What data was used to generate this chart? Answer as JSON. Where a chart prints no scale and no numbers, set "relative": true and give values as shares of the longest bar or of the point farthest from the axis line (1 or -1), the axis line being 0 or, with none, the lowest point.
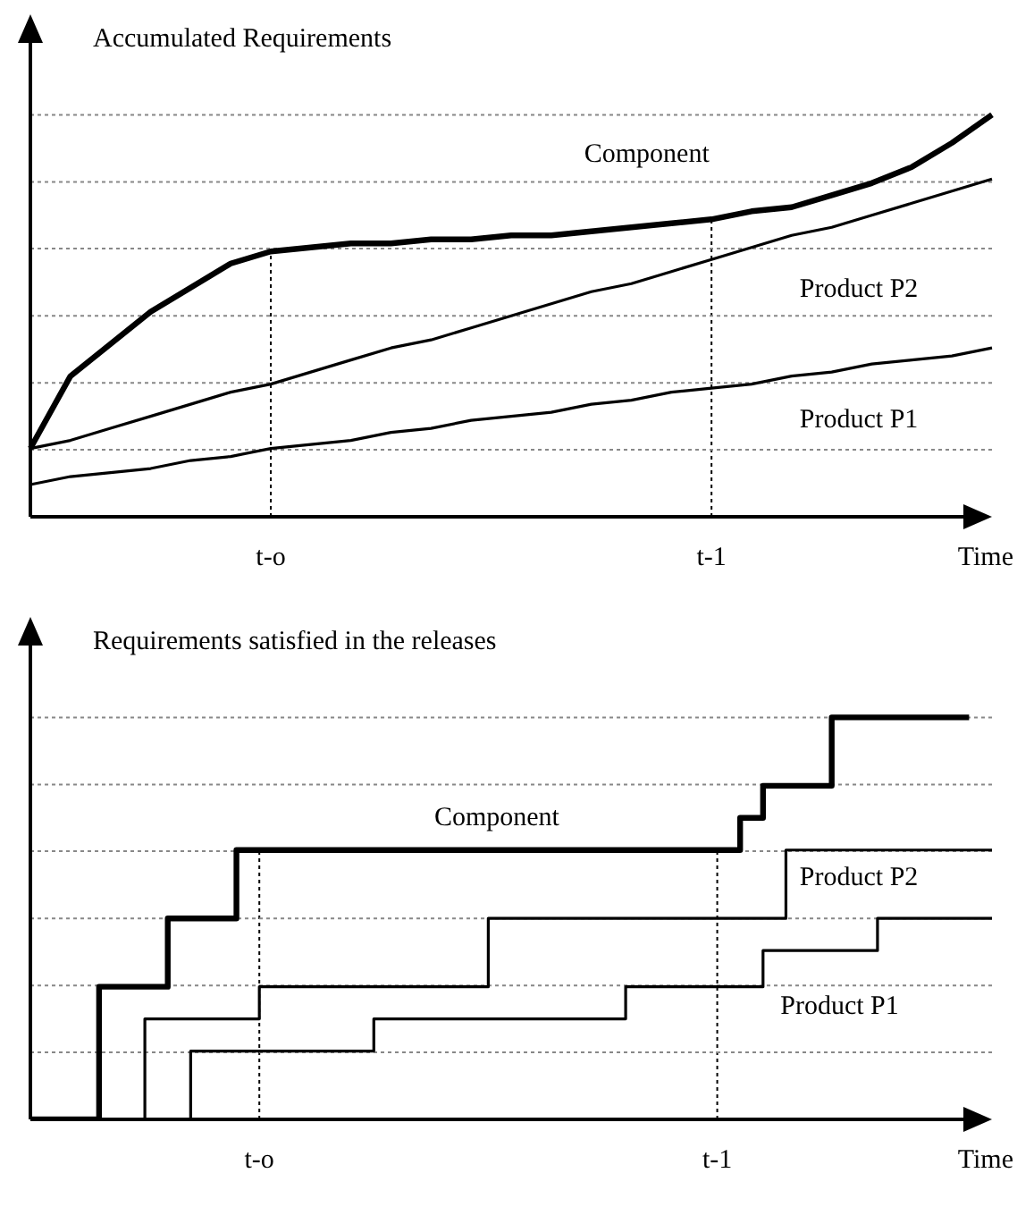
{
  "chart_data": [
    {
      "type": "line",
      "title": "Accumulated Requirements",
      "xlabel": "Time",
      "relative": true,
      "tick_labels": "x",
      "categories": [
        null,
        null,
        null,
        null,
        null,
        null,
        "t-o",
        null,
        null,
        null,
        null,
        null,
        null,
        null,
        null,
        null,
        null,
        "t-1",
        null,
        null,
        null,
        null,
        null,
        null,
        null
      ],
      "series": [
        {
          "name": "Component",
          "color": "#000000",
          "values": [
            0.17,
            0.35,
            0.43,
            0.51,
            0.57,
            0.63,
            0.66,
            0.67,
            0.68,
            0.68,
            0.69,
            0.69,
            0.7,
            0.7,
            0.71,
            0.72,
            0.73,
            0.74,
            0.76,
            0.77,
            0.8,
            0.83,
            0.87,
            0.93,
            1
          ]
        },
        {
          "name": "Product P2",
          "color": "#000000",
          "values": [
            0.17,
            0.19,
            0.22,
            0.25,
            0.28,
            0.31,
            0.33,
            0.36,
            0.39,
            0.42,
            0.44,
            0.47,
            0.5,
            0.53,
            0.56,
            0.58,
            0.61,
            0.64,
            0.67,
            0.7,
            0.72,
            0.75,
            0.78,
            0.81,
            0.84
          ]
        },
        {
          "name": "Product P1",
          "color": "#000000",
          "values": [
            0.08,
            0.1,
            0.11,
            0.12,
            0.14,
            0.15,
            0.17,
            0.18,
            0.19,
            0.21,
            0.22,
            0.24,
            0.25,
            0.26,
            0.28,
            0.29,
            0.31,
            0.32,
            0.33,
            0.35,
            0.36,
            0.38,
            0.39,
            0.4,
            0.42
          ]
        }
      ],
      "ref_lines": [
        {
          "axis": "x",
          "value": "t-o",
          "color": "#000000",
          "line_style": "dotted"
        },
        {
          "axis": "x",
          "value": "t-1",
          "color": "#000000",
          "line_style": "dotted"
        },
        {
          "axis": "y",
          "value": 0.167,
          "color": "#888888",
          "line_style": "dotted"
        },
        {
          "axis": "y",
          "value": 0.333,
          "color": "#888888",
          "line_style": "dotted"
        },
        {
          "axis": "y",
          "value": 0.5,
          "color": "#888888",
          "line_style": "dotted"
        },
        {
          "axis": "y",
          "value": 0.667,
          "color": "#888888",
          "line_style": "dotted"
        },
        {
          "axis": "y",
          "value": 0.833,
          "color": "#888888",
          "line_style": "dotted"
        },
        {
          "axis": "y",
          "value": 1,
          "color": "#888888",
          "line_style": "dotted"
        }
      ]
    },
    {
      "type": "step",
      "title": "Requirements satisfied in the releases",
      "xlabel": "Time",
      "relative": true,
      "tick_labels": "x",
      "categories": [
        null,
        null,
        null,
        null,
        null,
        null,
        null,
        null,
        null,
        null,
        "t-o",
        null,
        null,
        null,
        null,
        null,
        null,
        null,
        null,
        null,
        null,
        null,
        null,
        null,
        null,
        null,
        null,
        null,
        null,
        null,
        "t-1",
        null,
        null,
        null,
        null,
        null,
        null,
        null,
        null,
        null,
        null,
        null,
        null
      ],
      "series": [
        {
          "name": "Component",
          "color": "#000000",
          "values": [
            0,
            0,
            0,
            0.33,
            0.33,
            0.33,
            0.5,
            0.5,
            0.5,
            0.67,
            0.67,
            0.67,
            0.67,
            0.67,
            0.67,
            0.67,
            0.67,
            0.67,
            0.67,
            0.67,
            0.67,
            0.67,
            0.67,
            0.67,
            0.67,
            0.67,
            0.67,
            0.67,
            0.67,
            0.67,
            0.67,
            0.75,
            0.83,
            0.83,
            0.83,
            1,
            1,
            1,
            1,
            1,
            1,
            1,
            null
          ]
        },
        {
          "name": "Product P2",
          "color": "#000000",
          "values": [
            0,
            0,
            0,
            0,
            0,
            0.25,
            0.25,
            0.25,
            0.25,
            0.25,
            0.33,
            0.33,
            0.33,
            0.33,
            0.33,
            0.33,
            0.33,
            0.33,
            0.33,
            0.33,
            0.5,
            0.5,
            0.5,
            0.5,
            0.5,
            0.5,
            0.5,
            0.5,
            0.5,
            0.5,
            0.5,
            0.5,
            0.5,
            0.67,
            0.67,
            0.67,
            0.67,
            0.67,
            0.67,
            0.67,
            0.67,
            0.67,
            0.67
          ]
        },
        {
          "name": "Product P1",
          "color": "#000000",
          "values": [
            0,
            0,
            0,
            0,
            0,
            0,
            0,
            0.17,
            0.17,
            0.17,
            0.17,
            0.17,
            0.17,
            0.17,
            0.17,
            0.25,
            0.25,
            0.25,
            0.25,
            0.25,
            0.25,
            0.25,
            0.25,
            0.25,
            0.25,
            0.25,
            0.33,
            0.33,
            0.33,
            0.33,
            0.33,
            0.33,
            0.42,
            0.42,
            0.42,
            0.42,
            0.42,
            0.5,
            0.5,
            0.5,
            0.5,
            0.5,
            0.5
          ]
        }
      ],
      "ref_lines": [
        {
          "axis": "x",
          "value": "t-o",
          "color": "#000000",
          "line_style": "dotted"
        },
        {
          "axis": "x",
          "value": "t-1",
          "color": "#000000",
          "line_style": "dotted"
        },
        {
          "axis": "y",
          "value": 0.167,
          "color": "#888888",
          "line_style": "dotted"
        },
        {
          "axis": "y",
          "value": 0.333,
          "color": "#888888",
          "line_style": "dotted"
        },
        {
          "axis": "y",
          "value": 0.5,
          "color": "#888888",
          "line_style": "dotted"
        },
        {
          "axis": "y",
          "value": 0.667,
          "color": "#888888",
          "line_style": "dotted"
        },
        {
          "axis": "y",
          "value": 0.833,
          "color": "#888888",
          "line_style": "dotted"
        },
        {
          "axis": "y",
          "value": 1,
          "color": "#888888",
          "line_style": "dotted"
        }
      ]
    }
  ]
}
